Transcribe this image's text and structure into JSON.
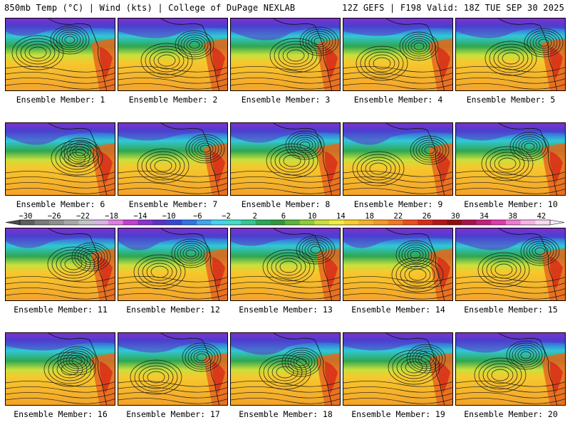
{
  "header": {
    "left": "850mb Temp (°C) | Wind (kts) | College of DuPage NEXLAB",
    "right": "12Z GEFS | F198 Valid: 18Z TUE SEP 30 2025"
  },
  "panels": [
    {
      "label": "Ensemble Member: 1"
    },
    {
      "label": "Ensemble Member: 2"
    },
    {
      "label": "Ensemble Member: 3"
    },
    {
      "label": "Ensemble Member: 4"
    },
    {
      "label": "Ensemble Member: 5"
    },
    {
      "label": "Ensemble Member: 6"
    },
    {
      "label": "Ensemble Member: 7"
    },
    {
      "label": "Ensemble Member: 8"
    },
    {
      "label": "Ensemble Member: 9"
    },
    {
      "label": "Ensemble Member: 10"
    },
    {
      "label": "Ensemble Member: 11"
    },
    {
      "label": "Ensemble Member: 12"
    },
    {
      "label": "Ensemble Member: 13"
    },
    {
      "label": "Ensemble Member: 14"
    },
    {
      "label": "Ensemble Member: 15"
    },
    {
      "label": "Ensemble Member: 16"
    },
    {
      "label": "Ensemble Member: 17"
    },
    {
      "label": "Ensemble Member: 18"
    },
    {
      "label": "Ensemble Member: 19"
    },
    {
      "label": "Ensemble Member: 20"
    }
  ],
  "colorbar": {
    "ticks": [
      "-30",
      "-26",
      "-22",
      "-18",
      "-14",
      "-10",
      "-6",
      "-2",
      "2",
      "6",
      "10",
      "14",
      "18",
      "22",
      "26",
      "30",
      "34",
      "38",
      "42"
    ],
    "colors": [
      "#5e5e5e",
      "#7a7a7a",
      "#8f8f8f",
      "#a8a8a8",
      "#c4c4c4",
      "#d9b3e6",
      "#e27de8",
      "#c33fd1",
      "#8a2fd0",
      "#5a32c8",
      "#3648d8",
      "#2f74e6",
      "#3fa6ef",
      "#48d2f2",
      "#3fe0c8",
      "#33c98e",
      "#2aa85a",
      "#2f9a3a",
      "#5eb33a",
      "#8fcc3a",
      "#c8e03c",
      "#f2ef3a",
      "#f7cf2e",
      "#f6b12b",
      "#f49a28",
      "#f27822",
      "#ee4d1c",
      "#d92a18",
      "#b81414",
      "#8f0e0e",
      "#a8124a",
      "#c71e80",
      "#e03ab0",
      "#ef7ad2",
      "#f6b4e6",
      "#fbd9f2"
    ]
  }
}
